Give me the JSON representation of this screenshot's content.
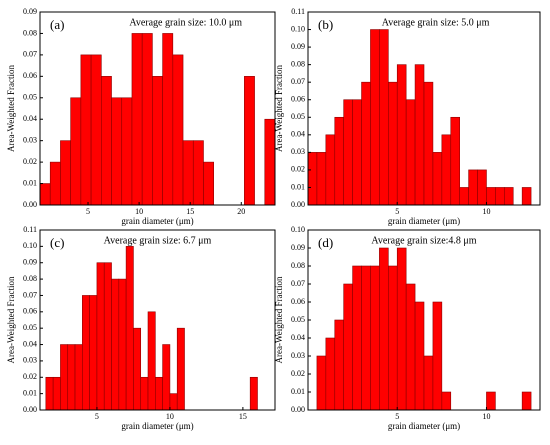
{
  "chart_data": [
    {
      "type": "histogram",
      "panel_label": "(a)",
      "annotation": "Average grain size: 10.0 μm",
      "xlabel": "grain diameter (μm)",
      "ylabel": "Area-Weighted Fraction",
      "color": "#ff0000",
      "bins": [
        0.3,
        1.3,
        2.3,
        3.3,
        4.3,
        5.3,
        6.3,
        7.3,
        8.3,
        9.3,
        10.3,
        11.3,
        12.3,
        13.3,
        14.3,
        15.3,
        16.3,
        17.3,
        18.3,
        19.3,
        20.3,
        21.3,
        22.3,
        23.3
      ],
      "values": [
        0.01,
        0.02,
        0.03,
        0.05,
        0.07,
        0.07,
        0.06,
        0.05,
        0.05,
        0.08,
        0.08,
        0.06,
        0.08,
        0.07,
        0.03,
        0.03,
        0.02,
        0,
        0,
        0,
        0.06,
        0,
        0.04
      ],
      "xlim": [
        0.3,
        23.3
      ],
      "xticks": [
        5,
        10,
        15,
        20
      ],
      "ylim": [
        0,
        0.09
      ],
      "yticks": [
        {
          "value": 0,
          "label": "0.00"
        },
        0.01,
        0.02,
        0.03,
        0.04,
        0.05,
        0.06,
        0.07,
        0.08,
        0.09
      ]
    },
    {
      "type": "histogram",
      "panel_label": "(b)",
      "annotation": "Average grain size: 5.0 μm",
      "xlabel": "grain diameter (μm)",
      "ylabel": "Area-Weighted Fraction",
      "color": "#ff0000",
      "bins": [
        0,
        0.5,
        1,
        1.5,
        2,
        2.5,
        3,
        3.5,
        4,
        4.5,
        5,
        5.5,
        6,
        6.5,
        7,
        7.5,
        8,
        8.5,
        9,
        9.5,
        10,
        10.5,
        11,
        11.5,
        12,
        12.5
      ],
      "values": [
        0.03,
        0.03,
        0.04,
        0.05,
        0.06,
        0.06,
        0.07,
        0.1,
        0.1,
        0.07,
        0.08,
        0.06,
        0.08,
        0.07,
        0.03,
        0.04,
        0.05,
        0.01,
        0.02,
        0.02,
        0.01,
        0.01,
        0.01,
        0,
        0.01
      ],
      "xlim": [
        0,
        13
      ],
      "xticks": [
        5,
        10
      ],
      "ylim": [
        0,
        0.11
      ],
      "yticks": [
        {
          "value": 0,
          "label": "0.00"
        },
        0.01,
        0.02,
        0.03,
        0.04,
        0.05,
        0.06,
        0.07,
        0.08,
        0.09,
        {
          "value": 0.1,
          "label": "0.10"
        },
        0.11
      ]
    },
    {
      "type": "histogram",
      "panel_label": "(c)",
      "annotation": "Average grain size: 6.7 μm",
      "xlabel": "grain diameter (μm)",
      "ylabel": "Area-Weighted Fraction",
      "color": "#ff0000",
      "bins": [
        1.5,
        2,
        2.5,
        3,
        3.5,
        4,
        4.5,
        5,
        5.5,
        6,
        6.5,
        7,
        7.5,
        8,
        8.5,
        9,
        9.5,
        10,
        10.5,
        11,
        11.5,
        12,
        12.5,
        13,
        13.5,
        14,
        14.5,
        15,
        15.5,
        16
      ],
      "values": [
        0.02,
        0.02,
        0.04,
        0.04,
        0.04,
        0.07,
        0.07,
        0.09,
        0.09,
        0.08,
        0.08,
        0.1,
        0.05,
        0.02,
        0.06,
        0.02,
        0.04,
        0.01,
        0.05,
        0,
        0,
        0,
        0,
        0,
        0,
        0,
        0,
        0,
        0.02
      ],
      "xlim": [
        1.1,
        17.2
      ],
      "xticks": [
        5,
        10,
        15
      ],
      "ylim": [
        0,
        0.11
      ],
      "yticks": [
        {
          "value": 0,
          "label": "0.00"
        },
        0.01,
        0.02,
        0.03,
        0.04,
        0.05,
        0.06,
        0.07,
        0.08,
        0.09,
        {
          "value": 0.1,
          "label": "0.10"
        },
        0.11
      ]
    },
    {
      "type": "histogram",
      "panel_label": "(d)",
      "annotation": "Average grain size:4.8 μm",
      "xlabel": "grain diameter (μm)",
      "ylabel": "Area-Weighted Fraction",
      "color": "#ff0000",
      "bins": [
        0.5,
        1,
        1.5,
        2,
        2.5,
        3,
        3.5,
        4,
        4.5,
        5,
        5.5,
        6,
        6.5,
        7,
        7.5,
        8,
        8.5,
        9,
        9.5,
        10,
        10.5,
        11,
        11.5,
        12,
        12.5
      ],
      "values": [
        0.03,
        0.04,
        0.05,
        0.07,
        0.08,
        0.08,
        0.08,
        0.09,
        0.08,
        0.09,
        0.07,
        0.06,
        0.03,
        0.06,
        0.01,
        0,
        0,
        0,
        0,
        0.01,
        0,
        0,
        0,
        0.01
      ],
      "xlim": [
        0,
        13
      ],
      "xticks": [
        5,
        10
      ],
      "ylim": [
        0,
        0.1
      ],
      "yticks": [
        {
          "value": 0,
          "label": "0.00"
        },
        0.01,
        0.02,
        0.03,
        0.04,
        0.05,
        0.06,
        0.07,
        0.08,
        0.09,
        {
          "value": 0.1,
          "label": "0.10"
        }
      ]
    }
  ]
}
